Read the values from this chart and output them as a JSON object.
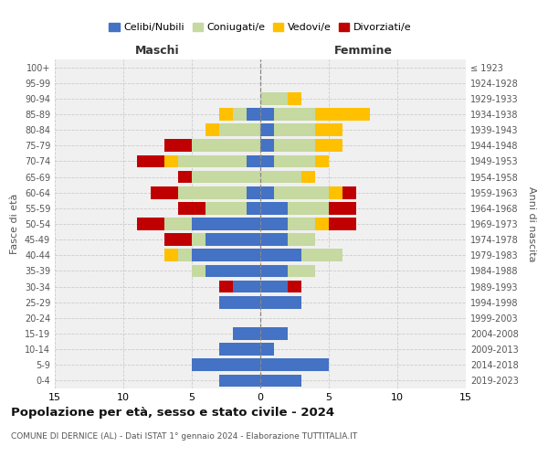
{
  "age_groups": [
    "0-4",
    "5-9",
    "10-14",
    "15-19",
    "20-24",
    "25-29",
    "30-34",
    "35-39",
    "40-44",
    "45-49",
    "50-54",
    "55-59",
    "60-64",
    "65-69",
    "70-74",
    "75-79",
    "80-84",
    "85-89",
    "90-94",
    "95-99",
    "100+"
  ],
  "birth_years": [
    "2019-2023",
    "2014-2018",
    "2009-2013",
    "2004-2008",
    "1999-2003",
    "1994-1998",
    "1989-1993",
    "1984-1988",
    "1979-1983",
    "1974-1978",
    "1969-1973",
    "1964-1968",
    "1959-1963",
    "1954-1958",
    "1949-1953",
    "1944-1948",
    "1939-1943",
    "1934-1938",
    "1929-1933",
    "1924-1928",
    "≤ 1923"
  ],
  "males": {
    "celibe": [
      3,
      5,
      3,
      2,
      0,
      3,
      2,
      4,
      5,
      4,
      5,
      1,
      1,
      0,
      1,
      0,
      0,
      1,
      0,
      0,
      0
    ],
    "coniugato": [
      0,
      0,
      0,
      0,
      0,
      0,
      0,
      1,
      1,
      1,
      2,
      3,
      5,
      5,
      5,
      5,
      3,
      1,
      0,
      0,
      0
    ],
    "vedovo": [
      0,
      0,
      0,
      0,
      0,
      0,
      0,
      0,
      1,
      0,
      0,
      0,
      0,
      0,
      1,
      0,
      1,
      1,
      0,
      0,
      0
    ],
    "divorziato": [
      0,
      0,
      0,
      0,
      0,
      0,
      1,
      0,
      0,
      2,
      2,
      2,
      2,
      1,
      2,
      2,
      0,
      0,
      0,
      0,
      0
    ]
  },
  "females": {
    "nubile": [
      3,
      5,
      1,
      2,
      0,
      3,
      2,
      2,
      3,
      2,
      2,
      2,
      1,
      0,
      1,
      1,
      1,
      1,
      0,
      0,
      0
    ],
    "coniugata": [
      0,
      0,
      0,
      0,
      0,
      0,
      0,
      2,
      3,
      2,
      2,
      3,
      4,
      3,
      3,
      3,
      3,
      3,
      2,
      0,
      0
    ],
    "vedova": [
      0,
      0,
      0,
      0,
      0,
      0,
      0,
      0,
      0,
      0,
      1,
      0,
      1,
      1,
      1,
      2,
      2,
      4,
      1,
      0,
      0
    ],
    "divorziata": [
      0,
      0,
      0,
      0,
      0,
      0,
      1,
      0,
      0,
      0,
      2,
      2,
      1,
      0,
      0,
      0,
      0,
      0,
      0,
      0,
      0
    ]
  },
  "colors": {
    "celibe": "#4472c4",
    "coniugato": "#c5d9a0",
    "vedovo": "#ffc000",
    "divorziato": "#c00000"
  },
  "xlim": 15,
  "title": "Popolazione per età, sesso e stato civile - 2024",
  "subtitle": "COMUNE DI DERNICE (AL) - Dati ISTAT 1° gennaio 2024 - Elaborazione TUTTITALIA.IT",
  "xlabel_left": "Maschi",
  "xlabel_right": "Femmine",
  "ylabel_left": "Fasce di età",
  "ylabel_right": "Anni di nascita",
  "legend_labels": [
    "Celibi/Nubili",
    "Coniugati/e",
    "Vedovi/e",
    "Divorziati/e"
  ],
  "background_color": "#f0f0f0"
}
